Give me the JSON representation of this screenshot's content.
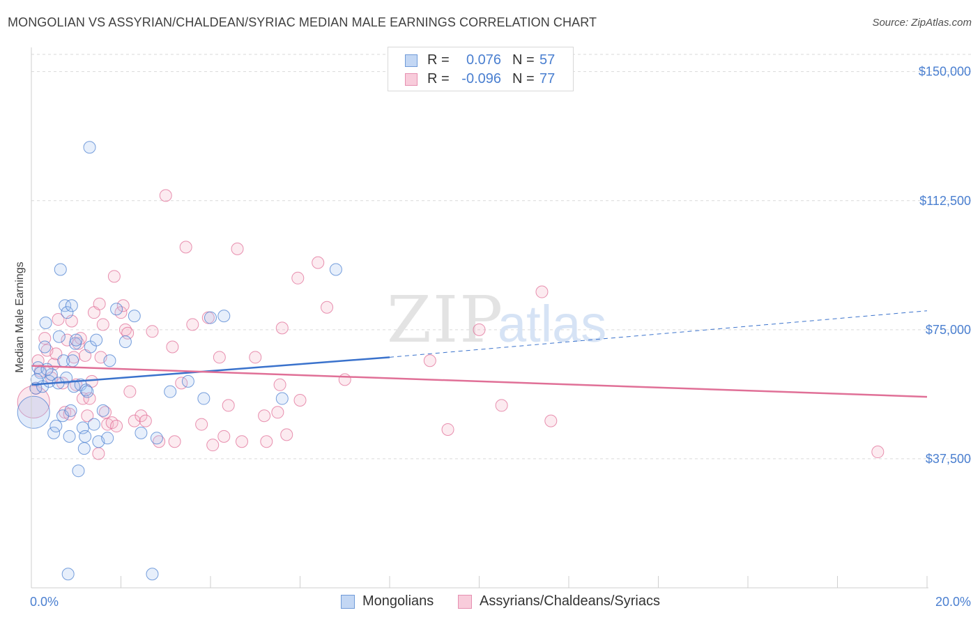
{
  "title": "MONGOLIAN VS ASSYRIAN/CHALDEAN/SYRIAC MEDIAN MALE EARNINGS CORRELATION CHART",
  "source": "Source: ZipAtlas.com",
  "watermark": "ZIPatlas",
  "colors": {
    "blue": "#4a7fd0",
    "blue_fill": "#a9c6f0",
    "blue_line": "#3a72cc",
    "pink": "#e06c96",
    "pink_fill": "#f4b6ca",
    "pink_line": "#e07097",
    "grid": "#d9d9d9"
  },
  "legend": {
    "rows": [
      {
        "r_label": "R =",
        "r_value": "0.076",
        "n_label": "N =",
        "n_value": "57"
      },
      {
        "r_label": "R =",
        "r_value": "-0.096",
        "n_label": "N =",
        "n_value": "77"
      }
    ]
  },
  "bottom_legend": [
    "Mongolians",
    "Assyrians/Chaldeans/Syriacs"
  ],
  "chart_data": {
    "type": "scatter",
    "title": "MONGOLIAN VS ASSYRIAN/CHALDEAN/SYRIAC MEDIAN MALE EARNINGS CORRELATION CHART",
    "xlabel": "",
    "ylabel": "Median Male Earnings",
    "xlim": [
      0,
      20
    ],
    "ylim": [
      0,
      155000
    ],
    "x_tick_labels": [
      "0.0%",
      "20.0%"
    ],
    "y_ticks": [
      37500,
      75000,
      112500,
      150000
    ],
    "y_tick_labels": [
      "$37,500",
      "$75,000",
      "$112,500",
      "$150,000"
    ],
    "grid": true,
    "legend_position": "top-center",
    "series": [
      {
        "name": "Mongolians",
        "color": "#4a7fd0",
        "trend": {
          "x": [
            0,
            8
          ],
          "y": [
            59000,
            67000
          ],
          "dashed_extension_to": [
            20,
            80500
          ]
        },
        "points": [
          {
            "x": 0.05,
            "y": 51000,
            "big": true
          },
          {
            "x": 0.1,
            "y": 58000
          },
          {
            "x": 0.15,
            "y": 64000
          },
          {
            "x": 0.2,
            "y": 62500
          },
          {
            "x": 0.25,
            "y": 58500
          },
          {
            "x": 0.3,
            "y": 70000
          },
          {
            "x": 0.32,
            "y": 77000
          },
          {
            "x": 0.4,
            "y": 60000
          },
          {
            "x": 0.45,
            "y": 62000
          },
          {
            "x": 0.5,
            "y": 45000
          },
          {
            "x": 0.55,
            "y": 47000
          },
          {
            "x": 0.6,
            "y": 59500
          },
          {
            "x": 0.62,
            "y": 73000
          },
          {
            "x": 0.65,
            "y": 92500
          },
          {
            "x": 0.7,
            "y": 50000
          },
          {
            "x": 0.72,
            "y": 66000
          },
          {
            "x": 0.75,
            "y": 82000
          },
          {
            "x": 0.78,
            "y": 61000
          },
          {
            "x": 0.8,
            "y": 80000
          },
          {
            "x": 0.82,
            "y": 4000
          },
          {
            "x": 0.85,
            "y": 44000
          },
          {
            "x": 0.88,
            "y": 51500
          },
          {
            "x": 0.9,
            "y": 82000
          },
          {
            "x": 0.92,
            "y": 66000
          },
          {
            "x": 0.95,
            "y": 58500
          },
          {
            "x": 0.98,
            "y": 71000
          },
          {
            "x": 1.0,
            "y": 72000
          },
          {
            "x": 1.05,
            "y": 34000
          },
          {
            "x": 1.1,
            "y": 59000
          },
          {
            "x": 1.15,
            "y": 46500
          },
          {
            "x": 1.18,
            "y": 40500
          },
          {
            "x": 1.2,
            "y": 44000
          },
          {
            "x": 1.22,
            "y": 57500
          },
          {
            "x": 1.3,
            "y": 128000
          },
          {
            "x": 1.32,
            "y": 70000
          },
          {
            "x": 1.4,
            "y": 47500
          },
          {
            "x": 1.45,
            "y": 72000
          },
          {
            "x": 1.5,
            "y": 42500
          },
          {
            "x": 1.6,
            "y": 51500
          },
          {
            "x": 1.7,
            "y": 43500
          },
          {
            "x": 1.75,
            "y": 66000
          },
          {
            "x": 1.9,
            "y": 81000
          },
          {
            "x": 2.1,
            "y": 71500
          },
          {
            "x": 2.3,
            "y": 79000
          },
          {
            "x": 2.45,
            "y": 45000
          },
          {
            "x": 2.7,
            "y": 4000
          },
          {
            "x": 2.8,
            "y": 43500
          },
          {
            "x": 3.1,
            "y": 57000
          },
          {
            "x": 3.5,
            "y": 60000
          },
          {
            "x": 3.85,
            "y": 55000
          },
          {
            "x": 4.0,
            "y": 78500
          },
          {
            "x": 4.3,
            "y": 79000
          },
          {
            "x": 5.6,
            "y": 55000
          },
          {
            "x": 6.8,
            "y": 92500
          },
          {
            "x": 0.12,
            "y": 60500
          },
          {
            "x": 0.35,
            "y": 63500
          },
          {
            "x": 1.25,
            "y": 57000
          }
        ]
      },
      {
        "name": "Assyrians/Chaldeans/Syriacs",
        "color": "#e06c96",
        "trend": {
          "x": [
            0,
            20
          ],
          "y": [
            64500,
            55500
          ]
        },
        "points": [
          {
            "x": 0.05,
            "y": 54000,
            "big": true
          },
          {
            "x": 0.1,
            "y": 58000
          },
          {
            "x": 0.15,
            "y": 66000
          },
          {
            "x": 0.2,
            "y": 63000
          },
          {
            "x": 0.3,
            "y": 72500
          },
          {
            "x": 0.35,
            "y": 69000
          },
          {
            "x": 0.45,
            "y": 61000
          },
          {
            "x": 0.5,
            "y": 65000
          },
          {
            "x": 0.55,
            "y": 68000
          },
          {
            "x": 0.6,
            "y": 78000
          },
          {
            "x": 0.7,
            "y": 59500
          },
          {
            "x": 0.75,
            "y": 51000
          },
          {
            "x": 0.8,
            "y": 72000
          },
          {
            "x": 0.85,
            "y": 50500
          },
          {
            "x": 0.9,
            "y": 77500
          },
          {
            "x": 0.95,
            "y": 67000
          },
          {
            "x": 1.0,
            "y": 59000
          },
          {
            "x": 1.05,
            "y": 71000
          },
          {
            "x": 1.1,
            "y": 72500
          },
          {
            "x": 1.15,
            "y": 55000
          },
          {
            "x": 1.2,
            "y": 67500
          },
          {
            "x": 1.25,
            "y": 50000
          },
          {
            "x": 1.3,
            "y": 55000
          },
          {
            "x": 1.35,
            "y": 60000
          },
          {
            "x": 1.4,
            "y": 80000
          },
          {
            "x": 1.5,
            "y": 39000
          },
          {
            "x": 1.52,
            "y": 82500
          },
          {
            "x": 1.55,
            "y": 67000
          },
          {
            "x": 1.6,
            "y": 76500
          },
          {
            "x": 1.65,
            "y": 51000
          },
          {
            "x": 1.7,
            "y": 47500
          },
          {
            "x": 1.8,
            "y": 48000
          },
          {
            "x": 1.85,
            "y": 90500
          },
          {
            "x": 1.9,
            "y": 47000
          },
          {
            "x": 2.0,
            "y": 80000
          },
          {
            "x": 2.05,
            "y": 82000
          },
          {
            "x": 2.1,
            "y": 75000
          },
          {
            "x": 2.15,
            "y": 74000
          },
          {
            "x": 2.2,
            "y": 57000
          },
          {
            "x": 2.3,
            "y": 48500
          },
          {
            "x": 2.45,
            "y": 50000
          },
          {
            "x": 2.55,
            "y": 48500
          },
          {
            "x": 2.7,
            "y": 74500
          },
          {
            "x": 2.85,
            "y": 42500
          },
          {
            "x": 3.0,
            "y": 114000
          },
          {
            "x": 3.15,
            "y": 70000
          },
          {
            "x": 3.2,
            "y": 42500
          },
          {
            "x": 3.35,
            "y": 59500
          },
          {
            "x": 3.45,
            "y": 99000
          },
          {
            "x": 3.6,
            "y": 76500
          },
          {
            "x": 3.8,
            "y": 47500
          },
          {
            "x": 3.95,
            "y": 78500
          },
          {
            "x": 4.05,
            "y": 41500
          },
          {
            "x": 4.2,
            "y": 67000
          },
          {
            "x": 4.3,
            "y": 44000
          },
          {
            "x": 4.4,
            "y": 53000
          },
          {
            "x": 4.6,
            "y": 98500
          },
          {
            "x": 4.7,
            "y": 42500
          },
          {
            "x": 5.0,
            "y": 67000
          },
          {
            "x": 5.2,
            "y": 50000
          },
          {
            "x": 5.25,
            "y": 42500
          },
          {
            "x": 5.5,
            "y": 51000
          },
          {
            "x": 5.55,
            "y": 59000
          },
          {
            "x": 5.6,
            "y": 75500
          },
          {
            "x": 5.7,
            "y": 44500
          },
          {
            "x": 5.95,
            "y": 90000
          },
          {
            "x": 6.0,
            "y": 54500
          },
          {
            "x": 6.4,
            "y": 94500
          },
          {
            "x": 6.6,
            "y": 81500
          },
          {
            "x": 7.0,
            "y": 60500
          },
          {
            "x": 8.9,
            "y": 66000
          },
          {
            "x": 9.3,
            "y": 46000
          },
          {
            "x": 10.0,
            "y": 75000
          },
          {
            "x": 10.5,
            "y": 53000
          },
          {
            "x": 11.4,
            "y": 86000
          },
          {
            "x": 11.6,
            "y": 48500
          },
          {
            "x": 18.9,
            "y": 39500
          }
        ]
      }
    ]
  }
}
